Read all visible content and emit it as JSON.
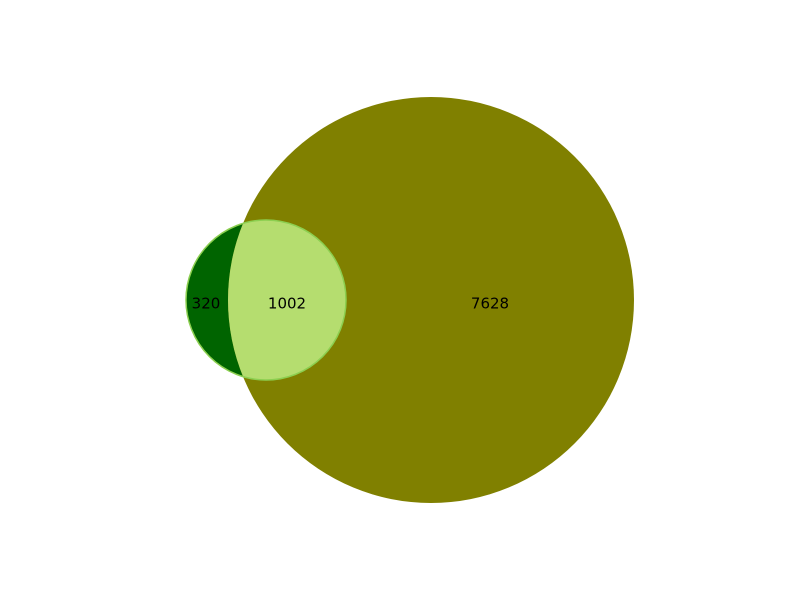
{
  "venn": {
    "sets": [
      {
        "id": "A",
        "size": 1322
      },
      {
        "id": "B",
        "size": 8630
      }
    ],
    "regions": [
      {
        "id": "only_a",
        "sets": [
          "A"
        ],
        "value": "320",
        "color": "#006400"
      },
      {
        "id": "overlap",
        "sets": [
          "A",
          "B"
        ],
        "value": "1002",
        "color": "#b5dd6f"
      },
      {
        "id": "only_b",
        "sets": [
          "B"
        ],
        "value": "7628",
        "color": "#808000"
      }
    ]
  }
}
